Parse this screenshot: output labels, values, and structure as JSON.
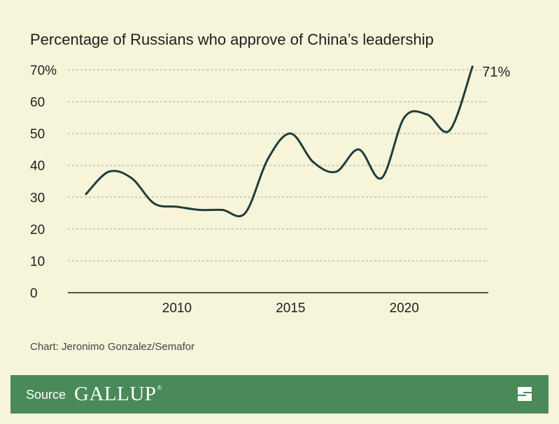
{
  "chart_data": {
    "type": "line",
    "title": "Percentage of Russians who approve of China’s leadership",
    "xlabel": "",
    "ylabel": "",
    "x": [
      2006,
      2007,
      2008,
      2009,
      2010,
      2011,
      2012,
      2013,
      2014,
      2015,
      2016,
      2017,
      2018,
      2019,
      2020,
      2021,
      2022,
      2023
    ],
    "values": [
      31,
      38,
      36,
      28,
      27,
      26,
      26,
      25,
      42,
      50,
      41,
      38,
      45,
      36,
      55,
      56,
      51,
      71
    ],
    "xlim": [
      2005.2,
      2023.7
    ],
    "ylim": [
      0,
      70
    ],
    "yticks": [
      0,
      10,
      20,
      30,
      40,
      50,
      60,
      70
    ],
    "ytick_labels": [
      "0",
      "10",
      "20",
      "30",
      "40",
      "50",
      "60",
      "70%"
    ],
    "xticks": [
      2010,
      2015,
      2020
    ],
    "xtick_labels": [
      "2010",
      "2015",
      "2020"
    ],
    "end_label": "71%",
    "grid": true,
    "line_color": "#1f3d3d"
  },
  "credit": "Chart: Jeronimo Gonzalez/Semafor",
  "source": {
    "label": "Source",
    "logo_text": "GALLUP",
    "logo_mark": "®",
    "bar_color": "#4a8a58"
  }
}
